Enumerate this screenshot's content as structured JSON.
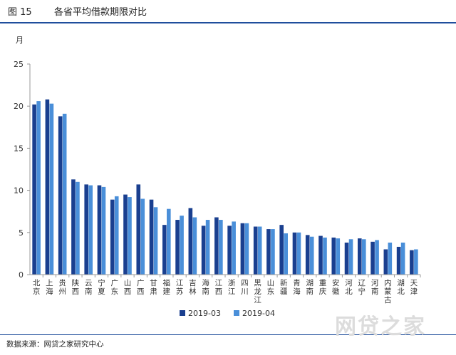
{
  "header": {
    "figure_label": "图 15",
    "title": "各省平均借款期限对比"
  },
  "source": "数据来源：网贷之家研究中心",
  "watermark": "网贷之家",
  "colors": {
    "series1": "#1a3f8f",
    "series2": "#4a8fd9",
    "rule": "#1f4e9c"
  },
  "chart_data": {
    "type": "bar",
    "unit_label": "月",
    "ylim": [
      0,
      25
    ],
    "yticks": [
      0,
      5,
      10,
      15,
      20,
      25
    ],
    "grid": false,
    "legend_position": "bottom",
    "categories": [
      "北京",
      "上海",
      "贵州",
      "陕西",
      "云南",
      "宁夏",
      "广东",
      "山西",
      "广西",
      "甘肃",
      "福建",
      "江苏",
      "吉林",
      "海南",
      "江西",
      "浙江",
      "四川",
      "黑龙江",
      "山东",
      "新疆",
      "青海",
      "湖南",
      "重庆",
      "安徽",
      "河北",
      "辽宁",
      "河南",
      "内蒙古",
      "湖北",
      "天津"
    ],
    "series": [
      {
        "name": "2019-03",
        "values": [
          20.2,
          20.8,
          18.8,
          11.3,
          10.7,
          10.6,
          8.9,
          9.5,
          10.7,
          8.9,
          5.9,
          6.5,
          7.9,
          5.8,
          6.8,
          5.8,
          6.1,
          5.7,
          5.4,
          5.9,
          5.0,
          4.7,
          4.6,
          4.4,
          3.8,
          4.3,
          3.9,
          3.0,
          3.3,
          2.9
        ]
      },
      {
        "name": "2019-04",
        "values": [
          20.6,
          20.3,
          19.1,
          11.0,
          10.6,
          10.4,
          9.3,
          9.2,
          9.0,
          8.0,
          7.8,
          7.0,
          6.8,
          6.5,
          6.5,
          6.3,
          6.1,
          5.7,
          5.4,
          4.9,
          5.0,
          4.5,
          4.4,
          4.3,
          4.2,
          4.2,
          4.1,
          3.8,
          3.8,
          3.0
        ]
      }
    ]
  }
}
